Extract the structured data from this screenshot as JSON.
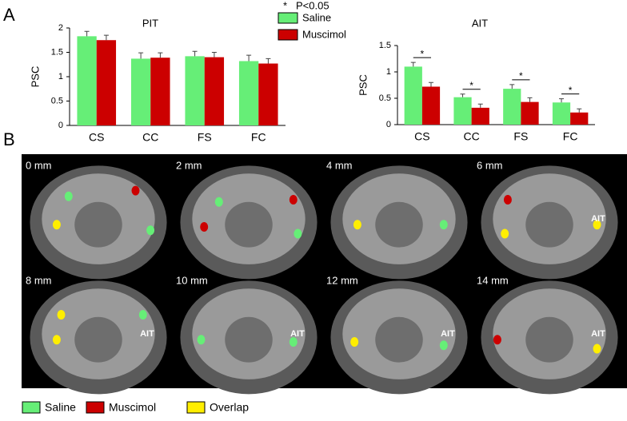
{
  "panel_labels": [
    "A",
    "B"
  ],
  "chart_data": [
    {
      "type": "bar",
      "title": "PIT",
      "y_label": "PSC",
      "categories": [
        "CS",
        "CC",
        "FS",
        "FC"
      ],
      "series": [
        {
          "name": "Saline",
          "color": "#66ee77",
          "values": [
            1.83,
            1.37,
            1.42,
            1.32
          ],
          "errors": [
            0.1,
            0.12,
            0.1,
            0.12
          ]
        },
        {
          "name": "Muscimol",
          "color": "#cc0000",
          "values": [
            1.75,
            1.39,
            1.4,
            1.27
          ],
          "errors": [
            0.1,
            0.1,
            0.1,
            0.1
          ]
        }
      ],
      "ylim": [
        0,
        2
      ],
      "yticks": [
        0,
        0.5,
        1,
        1.5,
        2
      ]
    },
    {
      "type": "bar",
      "title": "AIT",
      "y_label": "PSC",
      "categories": [
        "CS",
        "CC",
        "FS",
        "FC"
      ],
      "series": [
        {
          "color": "#66ee77",
          "values": [
            1.1,
            0.52,
            0.68,
            0.42
          ],
          "errors": [
            0.08,
            0.06,
            0.08,
            0.07
          ]
        },
        {
          "color": "#cc0000",
          "values": [
            0.72,
            0.32,
            0.43,
            0.23
          ],
          "errors": [
            0.08,
            0.07,
            0.08,
            0.07
          ]
        }
      ],
      "significance": [
        "*",
        "*",
        "*",
        "*"
      ],
      "ylim": [
        0,
        1.5
      ],
      "yticks": [
        0,
        0.5,
        1,
        1.5
      ]
    }
  ],
  "significance_legend": {
    "symbol": "*",
    "text": "P<0.05"
  },
  "slices": [
    "0 mm",
    "2 mm",
    "4 mm",
    "6 mm",
    "8 mm",
    "10 mm",
    "12 mm",
    "14 mm"
  ],
  "roi_label": "AIT",
  "map_legend": [
    {
      "name": "Saline",
      "color": "#66ee77"
    },
    {
      "name": "Muscimol",
      "color": "#cc0000"
    },
    {
      "name": "Overlap",
      "color": "#ffee00"
    }
  ]
}
